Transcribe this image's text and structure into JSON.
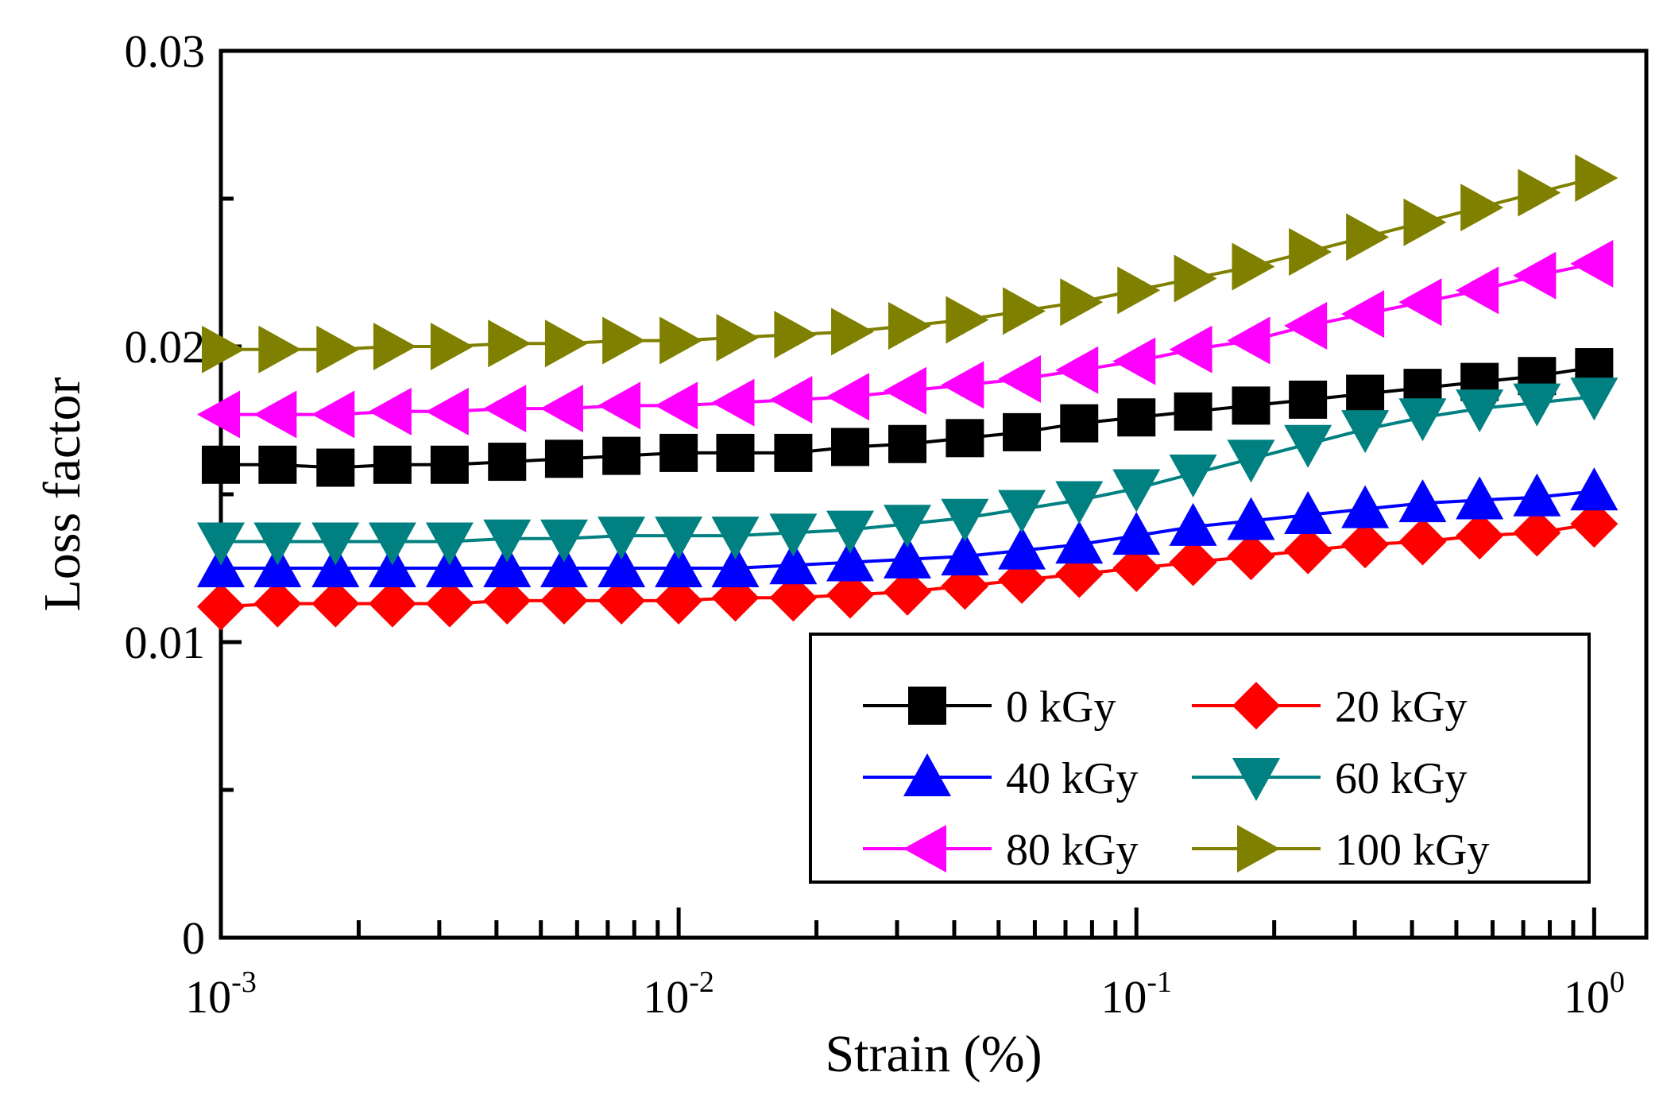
{
  "chart_data": {
    "type": "line",
    "title": "",
    "xlabel": "Strain (%)",
    "ylabel": "Loss factor",
    "x_scale": "log",
    "xlim": [
      0.001,
      1.3
    ],
    "ylim": [
      0,
      0.03
    ],
    "x_ticks": [
      {
        "value": 0.001,
        "base": "10",
        "exp": "-3"
      },
      {
        "value": 0.01,
        "base": "10",
        "exp": "-2"
      },
      {
        "value": 0.1,
        "base": "10",
        "exp": "-1"
      },
      {
        "value": 1,
        "base": "10",
        "exp": "0"
      }
    ],
    "y_ticks": [
      {
        "value": 0,
        "label": "0"
      },
      {
        "value": 0.01,
        "label": "0.01"
      },
      {
        "value": 0.02,
        "label": "0.02"
      },
      {
        "value": 0.03,
        "label": "0.03"
      }
    ],
    "y_minor_ticks": [
      0.005,
      0.015,
      0.025
    ],
    "grid": false,
    "legend_position": "bottom-right",
    "x": [
      0.001,
      0.00133,
      0.00178,
      0.00237,
      0.00316,
      0.00422,
      0.00562,
      0.0075,
      0.01,
      0.0133,
      0.0178,
      0.0237,
      0.0316,
      0.0422,
      0.0562,
      0.075,
      0.1,
      0.133,
      0.178,
      0.237,
      0.316,
      0.422,
      0.562,
      0.75,
      1.0
    ],
    "series": [
      {
        "name": "0 kGy",
        "color": "#000000",
        "marker": "square",
        "values": [
          0.016,
          0.016,
          0.0159,
          0.016,
          0.016,
          0.0161,
          0.0162,
          0.0163,
          0.0164,
          0.0164,
          0.0164,
          0.0166,
          0.0167,
          0.0169,
          0.0171,
          0.0174,
          0.0176,
          0.0178,
          0.018,
          0.0182,
          0.0184,
          0.0186,
          0.0188,
          0.019,
          0.0193
        ]
      },
      {
        "name": "20 kGy",
        "color": "#ff0000",
        "marker": "diamond",
        "values": [
          0.0112,
          0.0113,
          0.0113,
          0.0113,
          0.0113,
          0.0114,
          0.0114,
          0.0114,
          0.0114,
          0.0115,
          0.0115,
          0.0116,
          0.0117,
          0.0119,
          0.0121,
          0.0123,
          0.0125,
          0.0127,
          0.0129,
          0.0131,
          0.0133,
          0.0134,
          0.0136,
          0.0137,
          0.014
        ]
      },
      {
        "name": "40 kGy",
        "color": "#0000ff",
        "marker": "triangle-up",
        "values": [
          0.0125,
          0.0125,
          0.0125,
          0.0125,
          0.0125,
          0.0125,
          0.0125,
          0.0125,
          0.0125,
          0.0125,
          0.0126,
          0.0127,
          0.0128,
          0.0129,
          0.0131,
          0.0133,
          0.0136,
          0.0139,
          0.0141,
          0.0143,
          0.0145,
          0.0147,
          0.0148,
          0.0149,
          0.0151
        ]
      },
      {
        "name": "60 kGy",
        "color": "#008080",
        "marker": "triangle-down",
        "values": [
          0.0134,
          0.0134,
          0.0134,
          0.0134,
          0.0134,
          0.0135,
          0.0135,
          0.0136,
          0.0136,
          0.0136,
          0.0137,
          0.0138,
          0.014,
          0.0142,
          0.0145,
          0.0148,
          0.0152,
          0.0157,
          0.0162,
          0.0167,
          0.0172,
          0.0176,
          0.0179,
          0.0181,
          0.0183
        ]
      },
      {
        "name": "80 kGy",
        "color": "#ff00ff",
        "marker": "triangle-left",
        "values": [
          0.0177,
          0.0177,
          0.0177,
          0.0178,
          0.0178,
          0.0179,
          0.0179,
          0.018,
          0.018,
          0.0181,
          0.0182,
          0.0183,
          0.0185,
          0.0187,
          0.0189,
          0.0192,
          0.0195,
          0.0199,
          0.0202,
          0.0207,
          0.0211,
          0.0215,
          0.0219,
          0.0224,
          0.0228
        ]
      },
      {
        "name": "100 kGy",
        "color": "#808000",
        "marker": "triangle-right",
        "values": [
          0.0199,
          0.0199,
          0.0199,
          0.02,
          0.02,
          0.0201,
          0.0201,
          0.0202,
          0.0202,
          0.0203,
          0.0204,
          0.0205,
          0.0207,
          0.0209,
          0.0212,
          0.0215,
          0.0219,
          0.0223,
          0.0227,
          0.0232,
          0.0237,
          0.0242,
          0.0247,
          0.0252,
          0.0257
        ]
      }
    ]
  }
}
